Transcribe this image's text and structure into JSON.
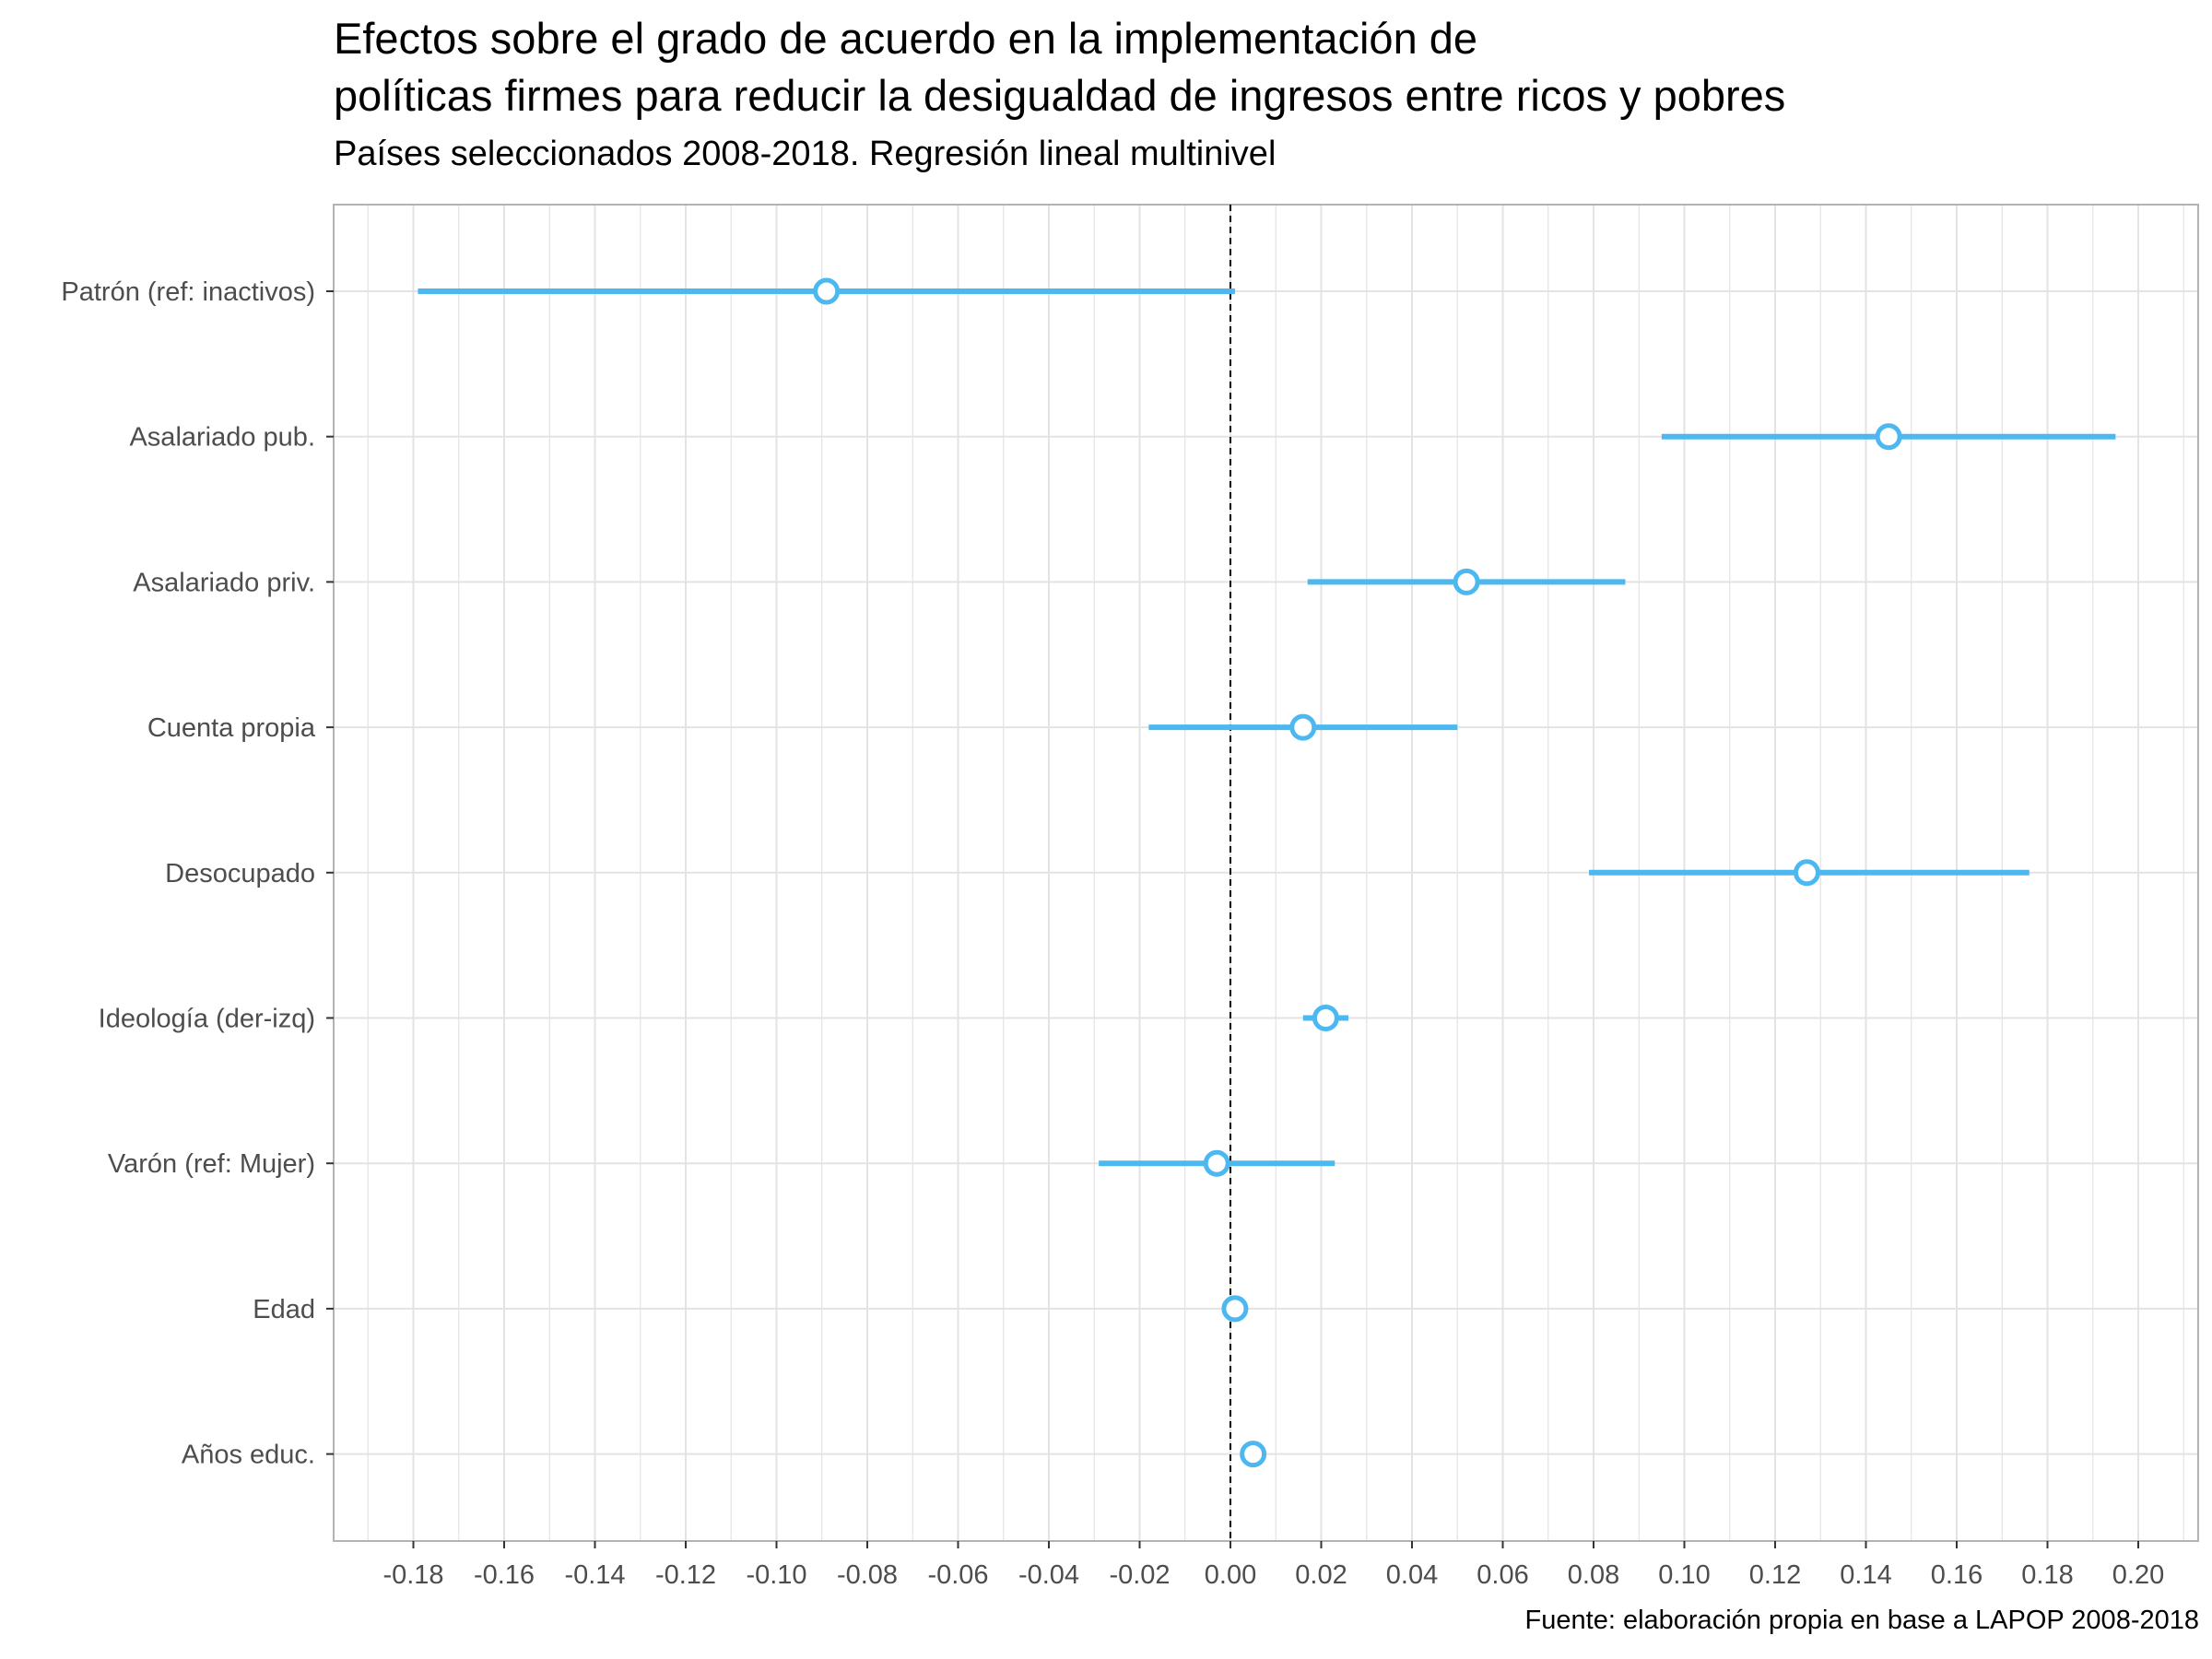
{
  "title": [
    "Efectos sobre el grado de acuerdo en la implementación de",
    "políticas firmes para reducir la desigualdad de ingresos entre ricos y pobres"
  ],
  "subtitle": "Países seleccionados 2008-2018. Regresión lineal multinivel",
  "caption": "Fuente: elaboración propia en base a LAPOP 2008-2018",
  "colors": {
    "accent": "#4db8f0",
    "grid": "#e3e3e3",
    "panel_border": "#b3b3b3",
    "reference_line": "#000000",
    "tick_text": "#4d4d4d"
  },
  "chart_data": {
    "type": "scatter",
    "subtype": "coefficient-plot",
    "title": "Efectos sobre el grado de acuerdo en la implementación de políticas firmes para reducir la desigualdad de ingresos entre ricos y pobres",
    "subtitle": "Países seleccionados 2008-2018. Regresión lineal multinivel",
    "xlabel": "",
    "ylabel": "",
    "xlim": [
      -0.2,
      0.21
    ],
    "x_ticks": [
      "-0.18",
      "-0.16",
      "-0.14",
      "-0.12",
      "-0.10",
      "-0.08",
      "-0.06",
      "-0.04",
      "-0.02",
      "0.00",
      "0.02",
      "0.04",
      "0.06",
      "0.08",
      "0.10",
      "0.12",
      "0.14",
      "0.16",
      "0.18",
      "0.20"
    ],
    "x_tick_values": [
      -0.18,
      -0.16,
      -0.14,
      -0.12,
      -0.1,
      -0.08,
      -0.06,
      -0.04,
      -0.02,
      0.0,
      0.02,
      0.04,
      0.06,
      0.08,
      0.1,
      0.12,
      0.14,
      0.16,
      0.18,
      0.2
    ],
    "reference_line": 0,
    "grid": true,
    "legend": "none",
    "categories": [
      "Patrón (ref: inactivos)",
      "Asalariado pub.",
      "Asalariado priv.",
      "Cuenta propia",
      "Desocupado",
      "Ideología (der-izq)",
      "Varón (ref: Mujer)",
      "Edad",
      "Años educ."
    ],
    "estimates": [
      -0.089,
      0.145,
      0.052,
      0.016,
      0.127,
      0.021,
      -0.003,
      0.001,
      0.005
    ],
    "ci_low": [
      -0.179,
      0.095,
      0.017,
      -0.018,
      0.079,
      0.016,
      -0.029,
      0.0,
      0.003
    ],
    "ci_high": [
      0.001,
      0.195,
      0.087,
      0.05,
      0.176,
      0.026,
      0.023,
      0.002,
      0.007
    ]
  }
}
